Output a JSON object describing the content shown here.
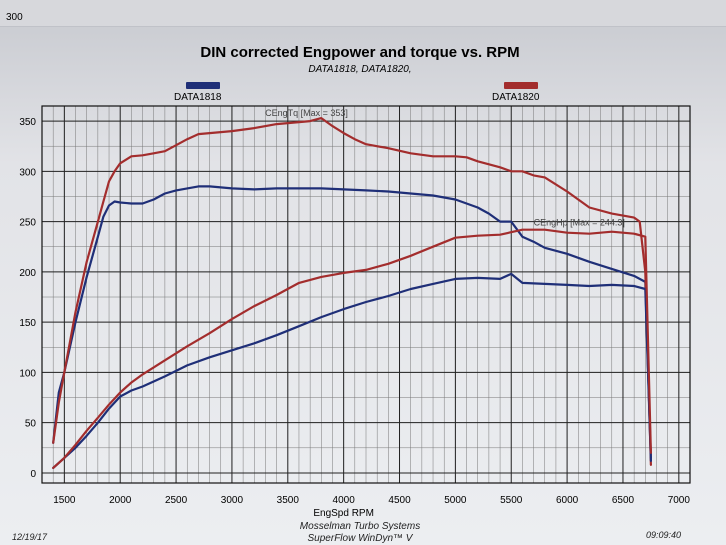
{
  "page": {
    "top_tick": "300",
    "title": "DIN corrected Engpower and torque vs. RPM",
    "subtitle": "DATA1818, DATA1820,",
    "footer_date": "12/19/17",
    "footer_company": "Mosselman Turbo Systems",
    "footer_software": "SuperFlow WinDyn™ V",
    "footer_time": "09:09:40"
  },
  "chart_data": {
    "type": "line",
    "title": "DIN corrected Engpower and torque vs. RPM",
    "subtitle": "DATA1818, DATA1820,",
    "xlabel": "EngSpd  RPM",
    "ylabel": "",
    "xlim": [
      1300,
      7100
    ],
    "ylim": [
      -10,
      365
    ],
    "x_ticks": [
      1500,
      2000,
      2500,
      3000,
      3500,
      4000,
      4500,
      5000,
      5500,
      6000,
      6500,
      7000
    ],
    "y_ticks": [
      0,
      50,
      100,
      150,
      200,
      250,
      300,
      350
    ],
    "grid": true,
    "legend": [
      {
        "name": "DATA1818",
        "color": "#1f2f78"
      },
      {
        "name": "DATA1820",
        "color": "#a32d2d"
      }
    ],
    "annotations": [
      {
        "text": "CEngTq [Max = 353]",
        "x": 3700,
        "y": 353
      },
      {
        "text": "CEngHp [Max = 244.3]",
        "x": 5700,
        "y": 244
      }
    ],
    "series": [
      {
        "name": "DATA1818",
        "quantity": "torque",
        "color": "#1f2f78",
        "x": [
          1400,
          1450,
          1500,
          1600,
          1700,
          1800,
          1850,
          1900,
          1950,
          2000,
          2100,
          2200,
          2300,
          2400,
          2500,
          2600,
          2700,
          2800,
          2900,
          3000,
          3200,
          3400,
          3600,
          3800,
          4000,
          4200,
          4400,
          4600,
          4800,
          5000,
          5200,
          5300,
          5400,
          5500,
          5600,
          5700,
          5800,
          6000,
          6200,
          6400,
          6600,
          6700,
          6750
        ],
        "y": [
          30,
          80,
          100,
          150,
          195,
          235,
          255,
          266,
          270,
          269,
          268,
          268,
          272,
          278,
          281,
          283,
          285,
          285,
          284,
          283,
          282,
          283,
          283,
          283,
          282,
          281,
          280,
          278,
          276,
          272,
          264,
          258,
          250,
          250,
          235,
          230,
          224,
          218,
          210,
          203,
          196,
          190,
          15
        ]
      },
      {
        "name": "DATA1820",
        "quantity": "torque",
        "color": "#a32d2d",
        "x": [
          1400,
          1450,
          1500,
          1600,
          1700,
          1800,
          1850,
          1900,
          1950,
          2000,
          2100,
          2200,
          2300,
          2400,
          2500,
          2600,
          2700,
          2800,
          3000,
          3200,
          3400,
          3600,
          3700,
          3800,
          3900,
          4000,
          4100,
          4200,
          4400,
          4600,
          4800,
          5000,
          5100,
          5200,
          5400,
          5500,
          5600,
          5700,
          5800,
          6000,
          6200,
          6400,
          6500,
          6600,
          6650,
          6700,
          6750
        ],
        "y": [
          30,
          70,
          100,
          160,
          210,
          250,
          270,
          290,
          300,
          308,
          315,
          316,
          318,
          320,
          326,
          332,
          337,
          338,
          340,
          343,
          347,
          349,
          350,
          353,
          345,
          338,
          332,
          327,
          323,
          318,
          315,
          315,
          314,
          310,
          304,
          300,
          300,
          296,
          294,
          280,
          264,
          258,
          256,
          254,
          250,
          200,
          8
        ]
      },
      {
        "name": "DATA1818",
        "quantity": "power",
        "color": "#1f2f78",
        "x": [
          1400,
          1500,
          1600,
          1700,
          1800,
          1900,
          2000,
          2100,
          2200,
          2400,
          2600,
          2800,
          3000,
          3200,
          3400,
          3600,
          3800,
          4000,
          4200,
          4400,
          4600,
          4800,
          5000,
          5200,
          5400,
          5500,
          5600,
          5800,
          6000,
          6200,
          6400,
          6600,
          6700,
          6750
        ],
        "y": [
          5,
          15,
          25,
          37,
          50,
          64,
          76,
          82,
          86,
          96,
          107,
          115,
          122,
          129,
          137,
          146,
          155,
          163,
          170,
          176,
          183,
          188,
          193,
          194,
          193,
          198,
          189,
          188,
          187,
          186,
          187,
          186,
          183,
          12
        ]
      },
      {
        "name": "DATA1820",
        "quantity": "power",
        "color": "#a32d2d",
        "x": [
          1400,
          1500,
          1600,
          1700,
          1800,
          1900,
          2000,
          2100,
          2200,
          2400,
          2600,
          2800,
          3000,
          3200,
          3400,
          3600,
          3800,
          4000,
          4200,
          4400,
          4600,
          4800,
          5000,
          5200,
          5400,
          5600,
          5800,
          6000,
          6200,
          6400,
          6600,
          6700,
          6750
        ],
        "y": [
          5,
          15,
          28,
          42,
          55,
          68,
          80,
          90,
          98,
          112,
          126,
          139,
          153,
          166,
          177,
          189,
          195,
          199,
          202,
          208,
          216,
          225,
          234,
          236,
          237,
          242,
          242,
          239,
          238,
          240,
          238,
          235,
          20
        ]
      }
    ]
  }
}
